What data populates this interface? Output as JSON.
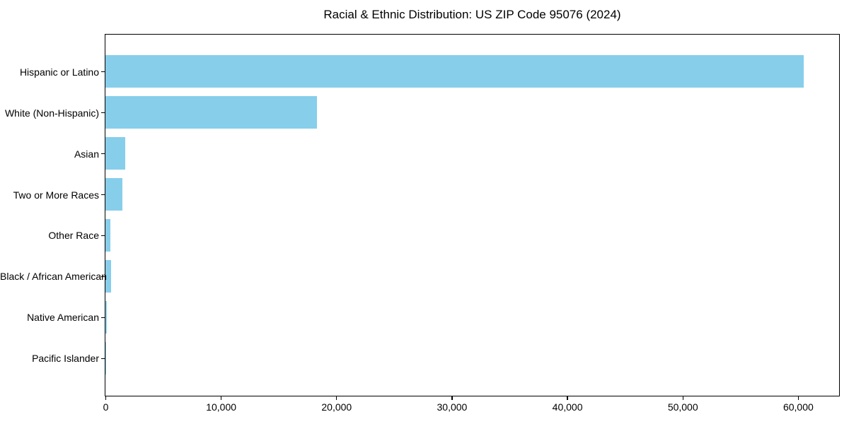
{
  "title": "Racial & Ethnic Distribution: US ZIP Code 95076 (2024)",
  "chart_data": {
    "type": "bar",
    "orientation": "horizontal",
    "title": "Racial & Ethnic Distribution: US ZIP Code 95076 (2024)",
    "xlabel": "",
    "ylabel": "",
    "categories": [
      "Hispanic or Latino",
      "White (Non-Hispanic)",
      "Asian",
      "Two or More Races",
      "Other Race",
      "Black / African American",
      "Native American",
      "Pacific Islander"
    ],
    "values": [
      60500,
      18300,
      1700,
      1500,
      450,
      480,
      100,
      60
    ],
    "xlim": [
      0,
      63500
    ],
    "xticks": [
      0,
      10000,
      20000,
      30000,
      40000,
      50000,
      60000
    ],
    "xtick_labels": [
      "0",
      "10,000",
      "20,000",
      "30,000",
      "40,000",
      "50,000",
      "60,000"
    ],
    "grid": false,
    "legend": "none",
    "bar_color": "#87CEEB",
    "order": "largest bar at top, value axis on bottom"
  },
  "colors": {
    "bar": "#87CEEB",
    "spine": "#000000",
    "text": "#000000",
    "background": "#FFFFFF"
  }
}
